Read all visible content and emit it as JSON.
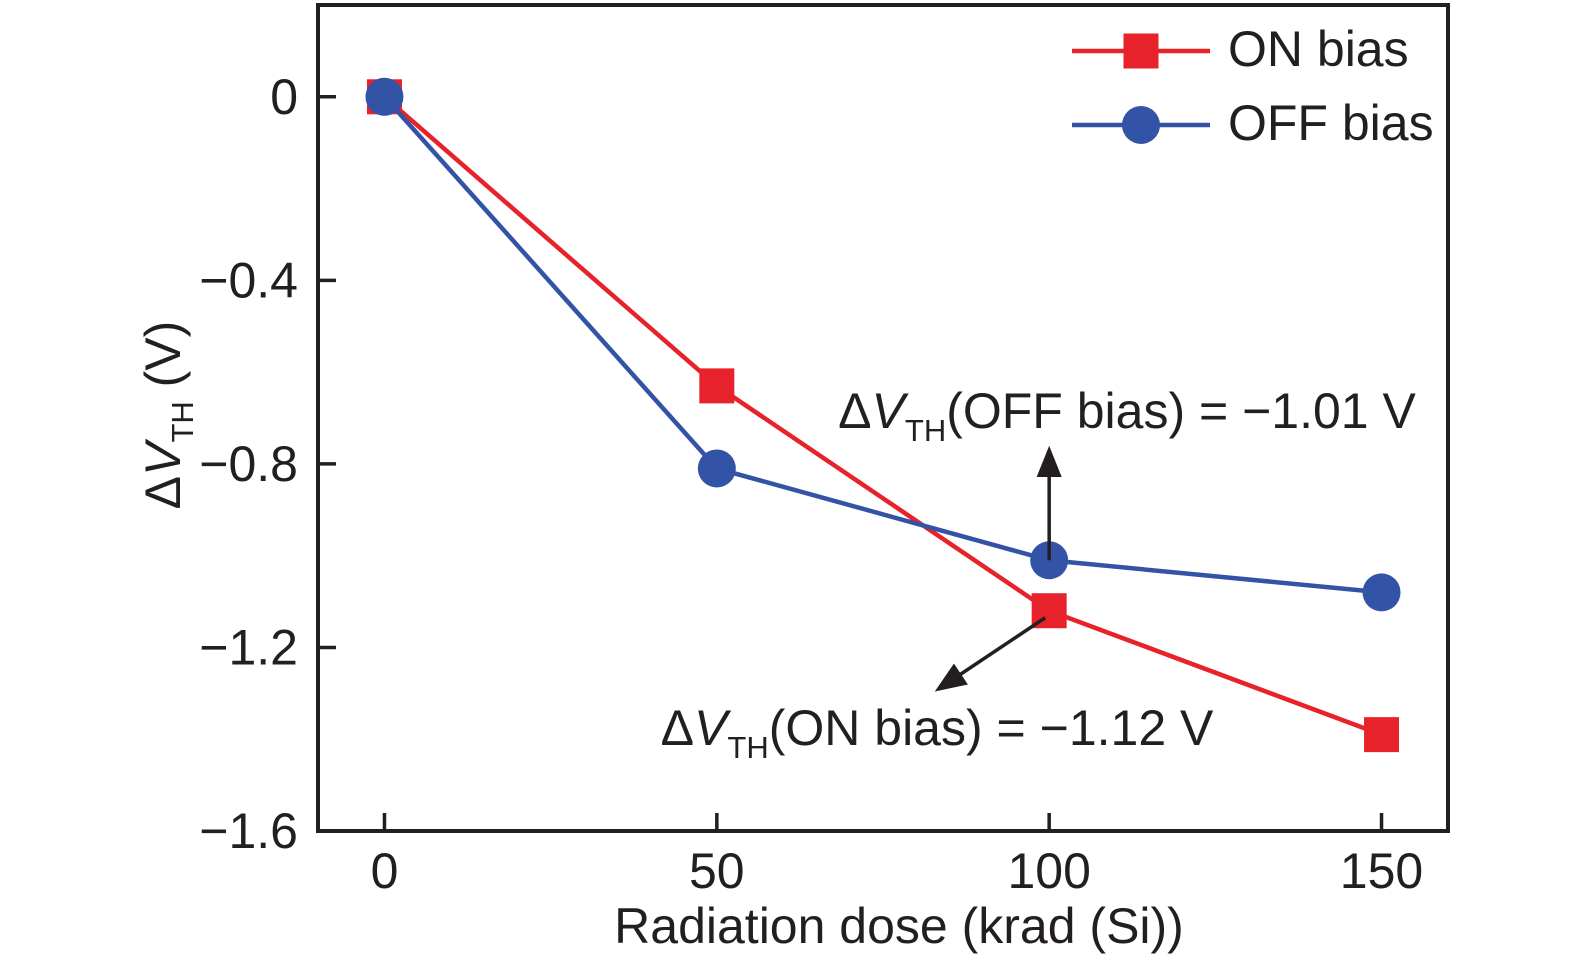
{
  "figure": {
    "background": "#ffffff",
    "foreground": "#231f20"
  },
  "chart_data": {
    "type": "line",
    "title": "",
    "xlabel": "Radiation dose (krad (Si))",
    "ylabel": "ΔV_TH (V)",
    "ylabel_parts": [
      {
        "text": "Δ"
      },
      {
        "text": "V",
        "italic": true
      },
      {
        "text": "TH",
        "sub": true
      },
      {
        "text": " (V)"
      }
    ],
    "x": [
      0,
      50,
      100,
      150
    ],
    "series": [
      {
        "name": "ON bias",
        "color": "#e7222b",
        "marker": "square",
        "values": [
          0,
          -0.63,
          -1.12,
          -1.39
        ]
      },
      {
        "name": "OFF bias",
        "color": "#3353a7",
        "marker": "circle",
        "values": [
          0,
          -0.81,
          -1.01,
          -1.08
        ]
      }
    ],
    "xlim": [
      -10,
      160
    ],
    "ylim": [
      -1.6,
      0.2
    ],
    "xticks": {
      "values": [
        0,
        50,
        100,
        150
      ],
      "labels": [
        "0",
        "50",
        "100",
        "150"
      ]
    },
    "yticks": {
      "values": [
        0,
        -0.4,
        -0.8,
        -1.2,
        -1.6
      ],
      "labels": [
        "0",
        "−0.4",
        "−0.8",
        "−1.2",
        "−1.6"
      ]
    },
    "grid": false,
    "legend_position": "top-right",
    "annotations": [
      {
        "id": "off-bias-annotation",
        "series": "OFF bias",
        "target_x": 100,
        "value": -1.01,
        "parts": [
          {
            "text": "Δ"
          },
          {
            "text": "V",
            "italic": true
          },
          {
            "text": "TH",
            "sub": true
          },
          {
            "text": "(OFF bias) = −1.01 V"
          }
        ]
      },
      {
        "id": "on-bias-annotation",
        "series": "ON bias",
        "target_x": 100,
        "value": -1.12,
        "parts": [
          {
            "text": "Δ"
          },
          {
            "text": "V",
            "italic": true
          },
          {
            "text": "TH",
            "sub": true
          },
          {
            "text": "(ON bias) = −1.12 V"
          }
        ]
      }
    ]
  },
  "legend": {
    "items": [
      {
        "label": "ON bias"
      },
      {
        "label": "OFF bias"
      }
    ]
  }
}
